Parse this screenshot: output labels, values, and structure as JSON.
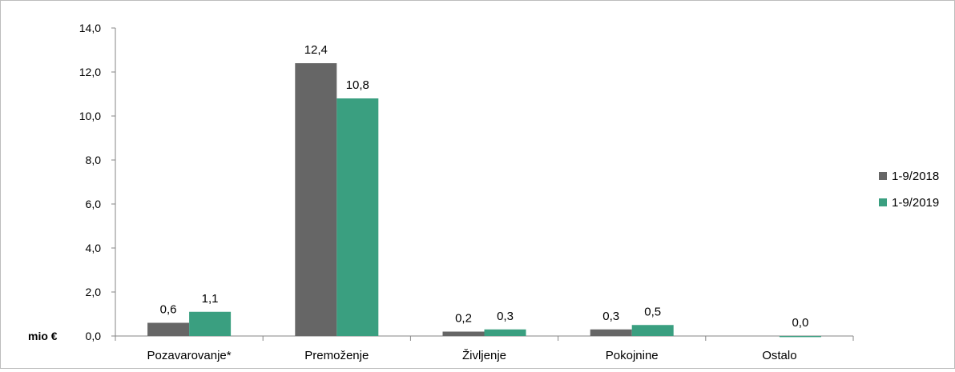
{
  "chart_data": {
    "type": "bar",
    "categories": [
      "Pozavarovanje*",
      "Premoženje",
      "Življenje",
      "Pokojnine",
      "Ostalo"
    ],
    "series": [
      {
        "name": "1-9/2018",
        "values": [
          0.6,
          12.4,
          0.2,
          0.3,
          0.0
        ],
        "labels": [
          "0,6",
          "12,4",
          "0,2",
          "0,3",
          ""
        ]
      },
      {
        "name": "1-9/2019",
        "values": [
          1.1,
          10.8,
          0.3,
          0.5,
          -0.05
        ],
        "labels": [
          "1,1",
          "10,8",
          "0,3",
          "0,5",
          "0,0"
        ]
      }
    ],
    "yticks": [
      "0,0",
      "2,0",
      "4,0",
      "6,0",
      "8,0",
      "10,0",
      "12,0",
      "14,0"
    ],
    "ylim": [
      0,
      14
    ],
    "unit_label": "mio €",
    "legend_position": "right",
    "colors": {
      "1-9/2018": "#666666",
      "1-9/2019": "#3a9f80"
    }
  }
}
